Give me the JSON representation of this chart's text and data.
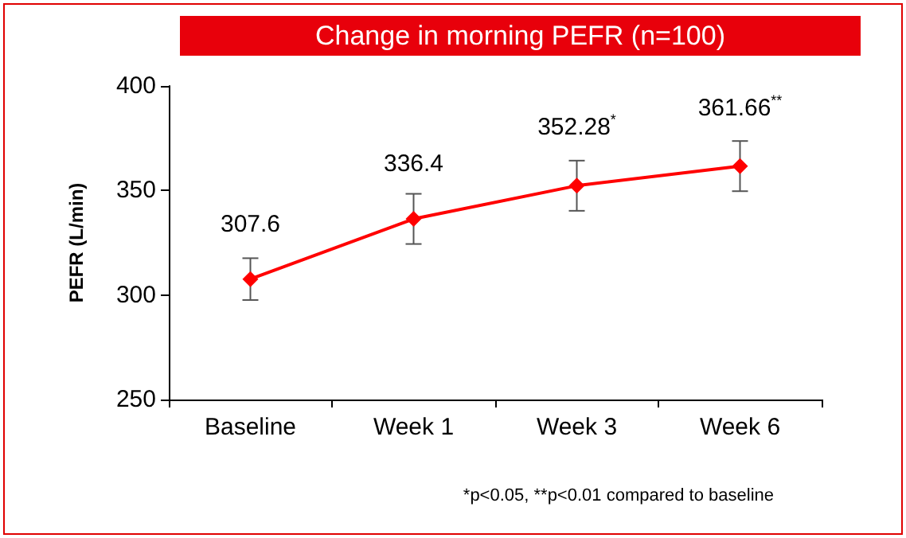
{
  "chart_data": {
    "type": "line",
    "title": "Change in morning PEFR (n=100)",
    "ylabel": "PEFR (L/min)",
    "categories": [
      "Baseline",
      "Week 1",
      "Week 3",
      "Week 6"
    ],
    "series": [
      {
        "color": "#ff0000",
        "values": [
          307.6,
          336.4,
          352.28,
          361.66
        ],
        "errors": [
          10,
          12,
          12,
          12
        ],
        "value_labels": [
          "307.6",
          "336.4",
          "352.28$^{*}$",
          "361.66$^{**}$"
        ]
      }
    ],
    "ylim": [
      250,
      400
    ],
    "yticks": [
      250,
      300,
      350,
      400
    ],
    "marker": "diamond",
    "line_style": "solid",
    "annotations": [
      "*p<0.05, **p<0.01 compared to baseline"
    ]
  }
}
